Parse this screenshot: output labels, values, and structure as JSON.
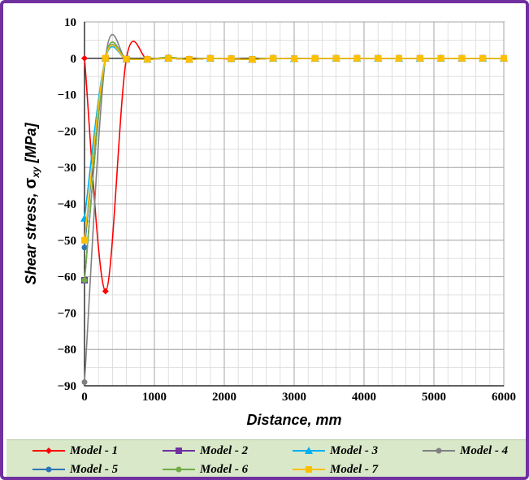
{
  "chart_data": {
    "type": "line",
    "xlabel": "Distance, mm",
    "ylabel_main": "Shear stress, ",
    "ylabel_symbol": "σ",
    "ylabel_subscript": "xy",
    "ylabel_unit": " [MPa]",
    "xlim": [
      0,
      6000
    ],
    "ylim": [
      -90,
      10
    ],
    "xticks": [
      0,
      1000,
      2000,
      3000,
      4000,
      5000,
      6000
    ],
    "yticks": [
      10,
      0,
      -10,
      -20,
      -30,
      -40,
      -50,
      -60,
      -70,
      -80,
      -90
    ],
    "ytick_labels": [
      "10",
      "0",
      "−10",
      "−20",
      "−30",
      "−40",
      "−50",
      "−60",
      "−70",
      "−80",
      "−90"
    ],
    "grid": true,
    "legend_position": "bottom",
    "x": [
      0,
      300,
      600,
      900,
      1200,
      1500,
      1800,
      2100,
      2400,
      2700,
      3000,
      3300,
      3600,
      3900,
      4200,
      4500,
      4800,
      5100,
      5400,
      5700,
      6000
    ],
    "series": [
      {
        "name": "Model - 1",
        "color": "#ff0000",
        "marker": "diamond",
        "values": [
          0,
          -64,
          0,
          -0.2,
          0,
          -0.3,
          0,
          -0.2,
          -0.3,
          0,
          -0.1,
          0,
          0,
          0,
          0,
          0,
          0,
          0,
          0,
          0,
          0
        ]
      },
      {
        "name": "Model - 2",
        "color": "#7030a0",
        "marker": "square",
        "values": [
          -61,
          0,
          -0.2,
          -0.3,
          0,
          -0.3,
          0,
          -0.1,
          -0.3,
          0,
          -0.1,
          0,
          0,
          0,
          0,
          0,
          0,
          0,
          0,
          0,
          0
        ]
      },
      {
        "name": "Model - 3",
        "color": "#00b0f0",
        "marker": "triangle",
        "values": [
          -44,
          0,
          -0.2,
          -0.3,
          0,
          -0.3,
          0,
          -0.1,
          -0.3,
          0,
          -0.1,
          0,
          0,
          0,
          0,
          0,
          0,
          0,
          0,
          0,
          0
        ]
      },
      {
        "name": "Model - 4",
        "color": "#808080",
        "marker": "circle",
        "values": [
          -89,
          0,
          -0.2,
          -0.3,
          0,
          -0.3,
          0,
          -0.1,
          -0.3,
          0,
          -0.1,
          0,
          0,
          0,
          0,
          0,
          0,
          0,
          0,
          0,
          0
        ]
      },
      {
        "name": "Model - 5",
        "color": "#2e75b6",
        "marker": "circle",
        "values": [
          -52,
          0,
          -0.2,
          -0.3,
          0,
          -0.3,
          0,
          -0.1,
          -0.3,
          0,
          -0.1,
          0,
          0,
          0,
          0,
          0,
          0,
          0,
          0,
          0,
          0
        ]
      },
      {
        "name": "Model - 6",
        "color": "#70ad47",
        "marker": "circle",
        "values": [
          -61,
          0,
          -0.2,
          -0.3,
          0.3,
          -0.3,
          0,
          -0.1,
          -0.3,
          0,
          -0.1,
          0,
          0,
          0,
          0,
          0,
          0,
          0,
          0,
          0,
          0
        ]
      },
      {
        "name": "Model - 7",
        "color": "#ffc000",
        "marker": "square",
        "values": [
          -50,
          0,
          -0.2,
          -0.3,
          0,
          -0.3,
          0,
          -0.1,
          -0.3,
          0,
          -0.1,
          0,
          0,
          0,
          0,
          0,
          0,
          0,
          0,
          0,
          0
        ]
      }
    ]
  }
}
